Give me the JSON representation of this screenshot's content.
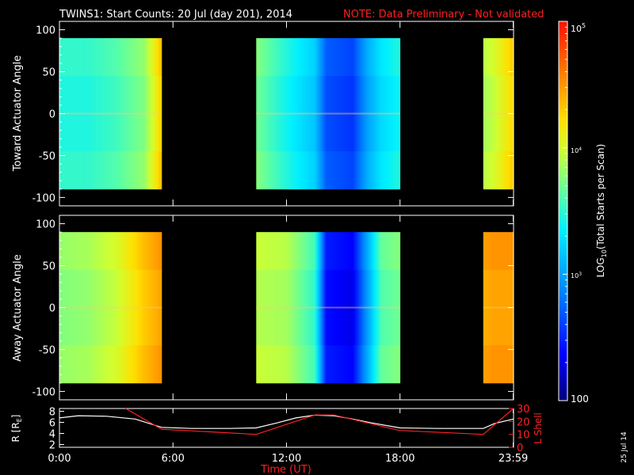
{
  "header": {
    "title": "TWINS1: Start Counts: 20 Jul (day 201), 2014",
    "note": "NOTE: Data Preliminary - Not validated",
    "note_color": "#ff2020"
  },
  "colors": {
    "background": "#000000",
    "axis": "#ffffff",
    "radius_line": "#ffffff",
    "lshell_line": "#ff2020"
  },
  "chart_data": [
    {
      "type": "heatmap",
      "panel": "toward",
      "ylabel": "Toward Actuator Angle",
      "ylim": [
        -110,
        110
      ],
      "yticks": [
        100,
        50,
        0,
        -50,
        -100
      ],
      "xlim": [
        0,
        24
      ],
      "data_angle_range": [
        -90,
        90
      ],
      "data_blocks": [
        {
          "start": 0.0,
          "end": 5.4
        },
        {
          "start": 10.4,
          "end": 18.0
        },
        {
          "start": 22.4,
          "end": 24.0
        }
      ],
      "log10_counts_profile": [
        {
          "t": 0.0,
          "v": 3.45
        },
        {
          "t": 1.5,
          "v": 3.45
        },
        {
          "t": 3.0,
          "v": 3.55
        },
        {
          "t": 4.5,
          "v": 3.75
        },
        {
          "t": 5.1,
          "v": 4.1
        },
        {
          "t": 5.4,
          "v": 4.3
        },
        {
          "t": 10.4,
          "v": 3.7
        },
        {
          "t": 12.0,
          "v": 3.4
        },
        {
          "t": 13.5,
          "v": 3.15
        },
        {
          "t": 14.1,
          "v": 2.65
        },
        {
          "t": 15.5,
          "v": 2.55
        },
        {
          "t": 16.3,
          "v": 3.0
        },
        {
          "t": 17.0,
          "v": 3.25
        },
        {
          "t": 18.0,
          "v": 3.4
        },
        {
          "t": 22.4,
          "v": 3.85
        },
        {
          "t": 23.0,
          "v": 3.95
        },
        {
          "t": 24.0,
          "v": 4.25
        }
      ]
    },
    {
      "type": "heatmap",
      "panel": "away",
      "ylabel": "Away Actuator Angle",
      "ylim": [
        -110,
        110
      ],
      "yticks": [
        100,
        50,
        0,
        -50,
        -100
      ],
      "xlim": [
        0,
        24
      ],
      "data_angle_range": [
        -90,
        90
      ],
      "data_blocks": [
        {
          "start": 0.0,
          "end": 5.4
        },
        {
          "start": 10.4,
          "end": 18.0
        },
        {
          "start": 22.4,
          "end": 24.0
        }
      ],
      "log10_counts_profile": [
        {
          "t": 0.0,
          "v": 3.75
        },
        {
          "t": 1.5,
          "v": 3.8
        },
        {
          "t": 3.0,
          "v": 3.95
        },
        {
          "t": 4.5,
          "v": 4.3
        },
        {
          "t": 5.1,
          "v": 4.4
        },
        {
          "t": 5.4,
          "v": 4.45
        },
        {
          "t": 10.4,
          "v": 3.9
        },
        {
          "t": 12.0,
          "v": 3.85
        },
        {
          "t": 13.5,
          "v": 3.5
        },
        {
          "t": 14.1,
          "v": 2.4
        },
        {
          "t": 15.5,
          "v": 2.3
        },
        {
          "t": 16.3,
          "v": 3.0
        },
        {
          "t": 17.0,
          "v": 3.6
        },
        {
          "t": 18.0,
          "v": 3.7
        },
        {
          "t": 22.4,
          "v": 4.4
        },
        {
          "t": 23.0,
          "v": 4.45
        },
        {
          "t": 24.0,
          "v": 4.45
        }
      ]
    },
    {
      "type": "line",
      "panel": "orbit",
      "ylabel_left": "R [R",
      "ylabel_left_sub": "E",
      "ylabel_left_end": "]",
      "ylabel_right": "L Shell",
      "ylim_left": [
        1.5,
        8.5
      ],
      "yticks_left": [
        8,
        6,
        4,
        2
      ],
      "ylim_right": [
        0,
        30
      ],
      "yticks_right": [
        30,
        20,
        10,
        0
      ],
      "xlim": [
        0,
        24
      ],
      "series": [
        {
          "name": "R",
          "axis": "left",
          "x": [
            0.0,
            1.0,
            2.5,
            4.0,
            5.4,
            7.0,
            9.0,
            10.4,
            11.5,
            12.5,
            13.5,
            14.5,
            15.5,
            16.5,
            18.0,
            20.0,
            22.4,
            23.0,
            23.99
          ],
          "y": [
            6.8,
            7.2,
            7.1,
            6.6,
            5.1,
            4.9,
            4.9,
            5.0,
            5.9,
            6.8,
            7.3,
            7.2,
            6.6,
            5.9,
            5.0,
            4.9,
            4.9,
            5.8,
            6.6
          ]
        },
        {
          "name": "L Shell",
          "axis": "right",
          "x": [
            3.5,
            5.4,
            10.4,
            13.5,
            14.5,
            18.0,
            22.4,
            23.99
          ],
          "y": [
            30,
            14,
            10,
            25,
            25,
            13,
            10,
            30
          ]
        }
      ]
    }
  ],
  "time_axis": {
    "ticks": [
      {
        "t": 0,
        "label": "0:00"
      },
      {
        "t": 6,
        "label": "6:00"
      },
      {
        "t": 12,
        "label": "12:00"
      },
      {
        "t": 18,
        "label": "18:00"
      },
      {
        "t": 23.983,
        "label": "23:59"
      }
    ],
    "xlabel": "Time (UT)",
    "xlabel_color": "#ff2020"
  },
  "colorbar": {
    "log_min": 2,
    "log_max": 5,
    "label_max": "10",
    "label_max_exp": "5",
    "label_mid1": "10",
    "label_mid1_exp": "4",
    "label_mid2": "10",
    "label_mid2_exp": "3",
    "label_min": "100",
    "title_prefix": "LOG",
    "title_sub": "10",
    "title_rest": "(Total Starts per Scan)",
    "stops": [
      {
        "offset": 0.0,
        "color": "#00007f"
      },
      {
        "offset": 0.12,
        "color": "#0000ff"
      },
      {
        "offset": 0.28,
        "color": "#0080ff"
      },
      {
        "offset": 0.45,
        "color": "#00f0ff"
      },
      {
        "offset": 0.55,
        "color": "#60ffa0"
      },
      {
        "offset": 0.66,
        "color": "#d0ff30"
      },
      {
        "offset": 0.74,
        "color": "#ffe000"
      },
      {
        "offset": 0.86,
        "color": "#ff8000"
      },
      {
        "offset": 1.0,
        "color": "#ff1000"
      }
    ]
  },
  "date_stamp": "25 Jul 14"
}
